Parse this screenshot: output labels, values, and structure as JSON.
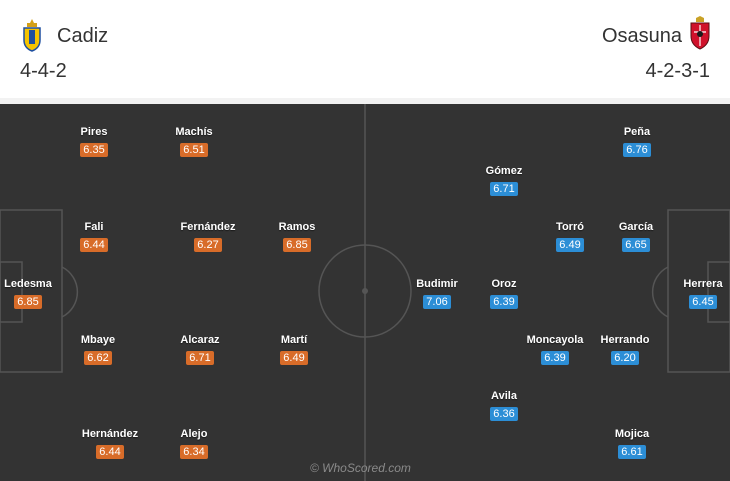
{
  "home": {
    "name": "Cadiz",
    "formation": "4-4-2",
    "crest_icon": "cadiz-crest-icon",
    "color": "#d86c29",
    "players": [
      {
        "name": "Ledesma",
        "rating": "6.85"
      },
      {
        "name": "Pires",
        "rating": "6.35"
      },
      {
        "name": "Machís",
        "rating": "6.51"
      },
      {
        "name": "Fali",
        "rating": "6.44"
      },
      {
        "name": "Fernández",
        "rating": "6.27"
      },
      {
        "name": "Ramos",
        "rating": "6.85"
      },
      {
        "name": "Mbaye",
        "rating": "6.62"
      },
      {
        "name": "Alcaraz",
        "rating": "6.71"
      },
      {
        "name": "Martí",
        "rating": "6.49"
      },
      {
        "name": "Hernández",
        "rating": "6.44"
      },
      {
        "name": "Alejo",
        "rating": "6.34"
      }
    ]
  },
  "away": {
    "name": "Osasuna",
    "formation": "4-2-3-1",
    "crest_icon": "osasuna-crest-icon",
    "color": "#2c8ed6",
    "players": [
      {
        "name": "Peña",
        "rating": "6.76"
      },
      {
        "name": "Gómez",
        "rating": "6.71"
      },
      {
        "name": "Torró",
        "rating": "6.49"
      },
      {
        "name": "García",
        "rating": "6.65"
      },
      {
        "name": "Budimir",
        "rating": "7.06"
      },
      {
        "name": "Oroz",
        "rating": "6.39"
      },
      {
        "name": "Herrera",
        "rating": "6.45"
      },
      {
        "name": "Moncayola",
        "rating": "6.39"
      },
      {
        "name": "Herrando",
        "rating": "6.20"
      },
      {
        "name": "Avila",
        "rating": "6.36"
      },
      {
        "name": "Mojica",
        "rating": "6.61"
      }
    ]
  },
  "watermark": "© WhoScored.com"
}
